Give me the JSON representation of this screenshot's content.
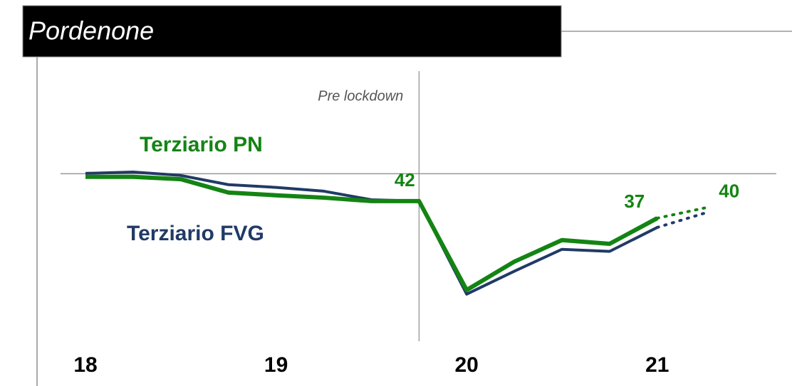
{
  "chart_data": {
    "type": "line",
    "title": "Pordenone",
    "categories": [
      "18",
      null,
      null,
      null,
      "19",
      null,
      null,
      null,
      "20",
      null,
      null,
      null,
      "21",
      null
    ],
    "series": [
      {
        "name": "Terziario FVG",
        "color": "#213a66",
        "values": [
          50.1,
          50.5,
          49.5,
          46.8,
          46,
          44.9,
          42.4,
          42,
          14.8,
          21.5,
          27.9,
          27.3,
          34.3,
          38.5
        ]
      },
      {
        "name": "Terziario PN",
        "color": "#138413",
        "values": [
          49.1,
          49.1,
          48.4,
          44.5,
          43.7,
          43,
          42,
          42,
          16,
          24.3,
          30.6,
          29.5,
          37,
          40
        ],
        "value_labels": [
          null,
          null,
          null,
          null,
          null,
          null,
          null,
          "42",
          null,
          null,
          null,
          null,
          "37",
          "40"
        ]
      }
    ],
    "dotted_from_index": 12,
    "ylim": [
      0,
      80
    ],
    "hline": 50,
    "vline_index": 7,
    "vline_label": "Pre lockdown"
  }
}
